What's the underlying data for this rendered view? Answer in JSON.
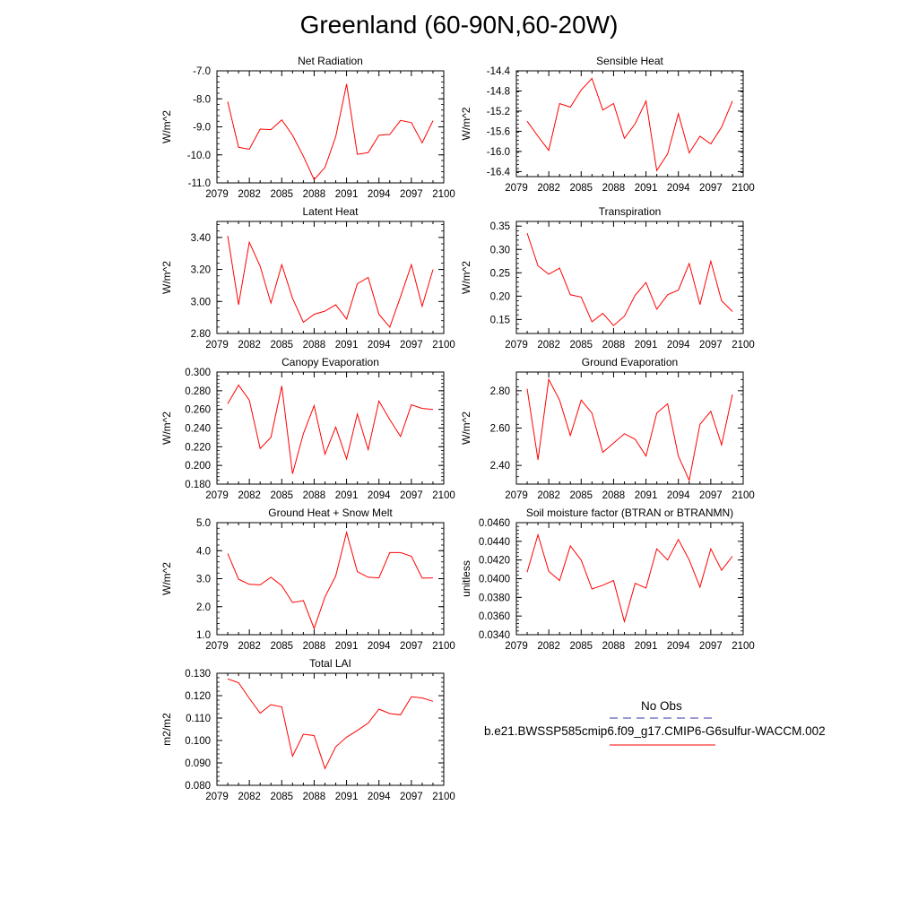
{
  "page_title": "Greenland (60-90N,60-20W)",
  "legend": {
    "obs_label": "No Obs",
    "obs_color": "#3333aa",
    "case_label": "b.e21.BWSSP585cmip6.f09_g17.CMIP6-G6sulfur-WACCM.002",
    "case_color": "#ff0000"
  },
  "chart_data": [
    {
      "type": "line",
      "title": "Net Radiation",
      "xlabel": "",
      "ylabel": "W/m^2",
      "xlim": [
        2079,
        2100
      ],
      "ylim": [
        -11.0,
        -7.0
      ],
      "xticks": [
        2079,
        2082,
        2085,
        2088,
        2091,
        2094,
        2097,
        2100
      ],
      "yticks": [
        -11.0,
        -10.0,
        -9.0,
        -8.0,
        -7.0
      ],
      "ydecimals": 1,
      "x": [
        2080,
        2081,
        2082,
        2083,
        2084,
        2085,
        2086,
        2087,
        2088,
        2089,
        2090,
        2091,
        2092,
        2093,
        2094,
        2095,
        2096,
        2097,
        2098,
        2099
      ],
      "series": [
        {
          "color": "#ff0000",
          "values": [
            -8.1,
            -9.73,
            -9.8,
            -9.08,
            -9.1,
            -8.75,
            -9.3,
            -10.05,
            -10.88,
            -10.45,
            -9.35,
            -7.47,
            -9.98,
            -9.92,
            -9.3,
            -9.27,
            -8.77,
            -8.85,
            -9.57,
            -8.78
          ]
        }
      ]
    },
    {
      "type": "line",
      "title": "Sensible Heat",
      "xlabel": "",
      "ylabel": "W/m^2",
      "xlim": [
        2079,
        2100
      ],
      "ylim": [
        -16.5,
        -14.4
      ],
      "xticks": [
        2079,
        2082,
        2085,
        2088,
        2091,
        2094,
        2097,
        2100
      ],
      "yticks": [
        -16.4,
        -16.0,
        -15.6,
        -15.2,
        -14.8,
        -14.4
      ],
      "ydecimals": 1,
      "x": [
        2080,
        2081,
        2082,
        2083,
        2084,
        2085,
        2086,
        2087,
        2088,
        2089,
        2090,
        2091,
        2092,
        2093,
        2094,
        2095,
        2096,
        2097,
        2098,
        2099
      ],
      "series": [
        {
          "color": "#ff0000",
          "values": [
            -15.4,
            -15.7,
            -15.98,
            -15.05,
            -15.12,
            -14.78,
            -14.55,
            -15.18,
            -15.05,
            -15.74,
            -15.45,
            -15.0,
            -16.38,
            -16.05,
            -15.25,
            -16.03,
            -15.7,
            -15.85,
            -15.52,
            -15.0
          ]
        }
      ]
    },
    {
      "type": "line",
      "title": "Latent Heat",
      "xlabel": "",
      "ylabel": "W/m^2",
      "xlim": [
        2079,
        2100
      ],
      "ylim": [
        2.8,
        3.5
      ],
      "xticks": [
        2079,
        2082,
        2085,
        2088,
        2091,
        2094,
        2097,
        2100
      ],
      "yticks": [
        2.8,
        3.0,
        3.2,
        3.4
      ],
      "ydecimals": 2,
      "x": [
        2080,
        2081,
        2082,
        2083,
        2084,
        2085,
        2086,
        2087,
        2088,
        2089,
        2090,
        2091,
        2092,
        2093,
        2094,
        2095,
        2096,
        2097,
        2098,
        2099
      ],
      "series": [
        {
          "color": "#ff0000",
          "values": [
            3.41,
            2.98,
            3.37,
            3.22,
            2.99,
            3.23,
            3.02,
            2.87,
            2.92,
            2.94,
            2.98,
            2.89,
            3.11,
            3.15,
            2.92,
            2.84,
            3.03,
            3.23,
            2.97,
            3.2
          ]
        }
      ]
    },
    {
      "type": "line",
      "title": "Transpiration",
      "xlabel": "",
      "ylabel": "W/m^2",
      "xlim": [
        2079,
        2100
      ],
      "ylim": [
        0.12,
        0.36
      ],
      "xticks": [
        2079,
        2082,
        2085,
        2088,
        2091,
        2094,
        2097,
        2100
      ],
      "yticks": [
        0.15,
        0.2,
        0.25,
        0.3,
        0.35
      ],
      "ydecimals": 2,
      "x": [
        2080,
        2081,
        2082,
        2083,
        2084,
        2085,
        2086,
        2087,
        2088,
        2089,
        2090,
        2091,
        2092,
        2093,
        2094,
        2095,
        2096,
        2097,
        2098,
        2099
      ],
      "series": [
        {
          "color": "#ff0000",
          "values": [
            0.335,
            0.265,
            0.247,
            0.26,
            0.203,
            0.198,
            0.145,
            0.163,
            0.137,
            0.157,
            0.202,
            0.229,
            0.172,
            0.203,
            0.213,
            0.27,
            0.182,
            0.275,
            0.19,
            0.167
          ]
        }
      ]
    },
    {
      "type": "line",
      "title": "Canopy Evaporation",
      "xlabel": "",
      "ylabel": "W/m^2",
      "xlim": [
        2079,
        2100
      ],
      "ylim": [
        0.18,
        0.3
      ],
      "xticks": [
        2079,
        2082,
        2085,
        2088,
        2091,
        2094,
        2097,
        2100
      ],
      "yticks": [
        0.18,
        0.2,
        0.22,
        0.24,
        0.26,
        0.28,
        0.3
      ],
      "ydecimals": 3,
      "x": [
        2080,
        2081,
        2082,
        2083,
        2084,
        2085,
        2086,
        2087,
        2088,
        2089,
        2090,
        2091,
        2092,
        2093,
        2094,
        2095,
        2096,
        2097,
        2098,
        2099
      ],
      "series": [
        {
          "color": "#ff0000",
          "values": [
            0.266,
            0.286,
            0.27,
            0.218,
            0.23,
            0.285,
            0.191,
            0.234,
            0.264,
            0.212,
            0.241,
            0.207,
            0.255,
            0.217,
            0.269,
            0.249,
            0.231,
            0.265,
            0.261,
            0.26
          ]
        }
      ]
    },
    {
      "type": "line",
      "title": "Ground Evaporation",
      "xlabel": "",
      "ylabel": "W/m^2",
      "xlim": [
        2079,
        2100
      ],
      "ylim": [
        2.3,
        2.9
      ],
      "xticks": [
        2079,
        2082,
        2085,
        2088,
        2091,
        2094,
        2097,
        2100
      ],
      "yticks": [
        2.4,
        2.6,
        2.8
      ],
      "ydecimals": 2,
      "x": [
        2080,
        2081,
        2082,
        2083,
        2084,
        2085,
        2086,
        2087,
        2088,
        2089,
        2090,
        2091,
        2092,
        2093,
        2094,
        2095,
        2096,
        2097,
        2098,
        2099
      ],
      "series": [
        {
          "color": "#ff0000",
          "values": [
            2.81,
            2.43,
            2.86,
            2.75,
            2.56,
            2.75,
            2.68,
            2.47,
            2.52,
            2.57,
            2.54,
            2.45,
            2.68,
            2.73,
            2.45,
            2.32,
            2.62,
            2.69,
            2.51,
            2.78
          ]
        }
      ]
    },
    {
      "type": "line",
      "title": "Ground Heat + Snow Melt",
      "xlabel": "",
      "ylabel": "W/m^2",
      "xlim": [
        2079,
        2100
      ],
      "ylim": [
        1.0,
        5.0
      ],
      "xticks": [
        2079,
        2082,
        2085,
        2088,
        2091,
        2094,
        2097,
        2100
      ],
      "yticks": [
        1.0,
        2.0,
        3.0,
        4.0,
        5.0
      ],
      "ydecimals": 1,
      "x": [
        2080,
        2081,
        2082,
        2083,
        2084,
        2085,
        2086,
        2087,
        2088,
        2089,
        2090,
        2091,
        2092,
        2093,
        2094,
        2095,
        2096,
        2097,
        2098,
        2099
      ],
      "series": [
        {
          "color": "#ff0000",
          "values": [
            3.9,
            2.98,
            2.8,
            2.78,
            3.05,
            2.75,
            2.15,
            2.22,
            1.22,
            2.35,
            3.1,
            4.65,
            3.25,
            3.05,
            3.03,
            3.93,
            3.93,
            3.8,
            3.02,
            3.03
          ]
        }
      ]
    },
    {
      "type": "line",
      "title": "Soil moisture factor (BTRAN or BTRANMN)",
      "xlabel": "",
      "ylabel": "unitless",
      "xlim": [
        2079,
        2100
      ],
      "ylim": [
        0.034,
        0.046
      ],
      "xticks": [
        2079,
        2082,
        2085,
        2088,
        2091,
        2094,
        2097,
        2100
      ],
      "yticks": [
        0.034,
        0.036,
        0.038,
        0.04,
        0.042,
        0.044,
        0.046
      ],
      "ydecimals": 4,
      "x": [
        2080,
        2081,
        2082,
        2083,
        2084,
        2085,
        2086,
        2087,
        2088,
        2089,
        2090,
        2091,
        2092,
        2093,
        2094,
        2095,
        2096,
        2097,
        2098,
        2099
      ],
      "series": [
        {
          "color": "#ff0000",
          "values": [
            0.0407,
            0.0447,
            0.0408,
            0.0398,
            0.0435,
            0.042,
            0.0389,
            0.0393,
            0.0398,
            0.0354,
            0.0395,
            0.039,
            0.0432,
            0.042,
            0.0442,
            0.042,
            0.0391,
            0.0432,
            0.0409,
            0.0424
          ]
        }
      ]
    },
    {
      "type": "line",
      "title": "Total LAI",
      "xlabel": "",
      "ylabel": "m2/m2",
      "xlim": [
        2079,
        2100
      ],
      "ylim": [
        0.08,
        0.13
      ],
      "xticks": [
        2079,
        2082,
        2085,
        2088,
        2091,
        2094,
        2097,
        2100
      ],
      "yticks": [
        0.08,
        0.09,
        0.1,
        0.11,
        0.12,
        0.13
      ],
      "ydecimals": 3,
      "x": [
        2080,
        2081,
        2082,
        2083,
        2084,
        2085,
        2086,
        2087,
        2088,
        2089,
        2090,
        2091,
        2092,
        2093,
        2094,
        2095,
        2096,
        2097,
        2098,
        2099
      ],
      "series": [
        {
          "color": "#ff0000",
          "values": [
            0.1275,
            0.1258,
            0.1188,
            0.1122,
            0.116,
            0.115,
            0.093,
            0.1028,
            0.1022,
            0.0875,
            0.0972,
            0.1015,
            0.1045,
            0.1078,
            0.114,
            0.112,
            0.1115,
            0.1195,
            0.119,
            0.1175
          ]
        }
      ]
    }
  ]
}
